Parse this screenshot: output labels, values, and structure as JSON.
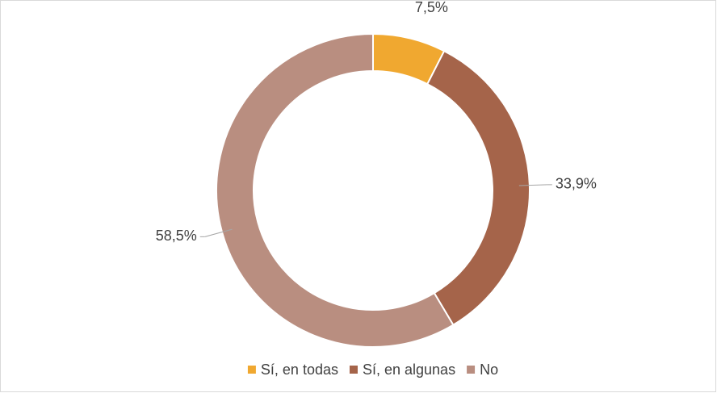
{
  "chart_data": {
    "type": "donut",
    "categories": [
      "Sí, en todas",
      "Sí, en algunas",
      "No"
    ],
    "values": [
      7.5,
      33.9,
      58.5
    ],
    "value_labels": [
      "7,5%",
      "33,9%",
      "58,5%"
    ],
    "colors": [
      "#F0A830",
      "#A5644A",
      "#B98E80"
    ],
    "legend": "bottom"
  }
}
